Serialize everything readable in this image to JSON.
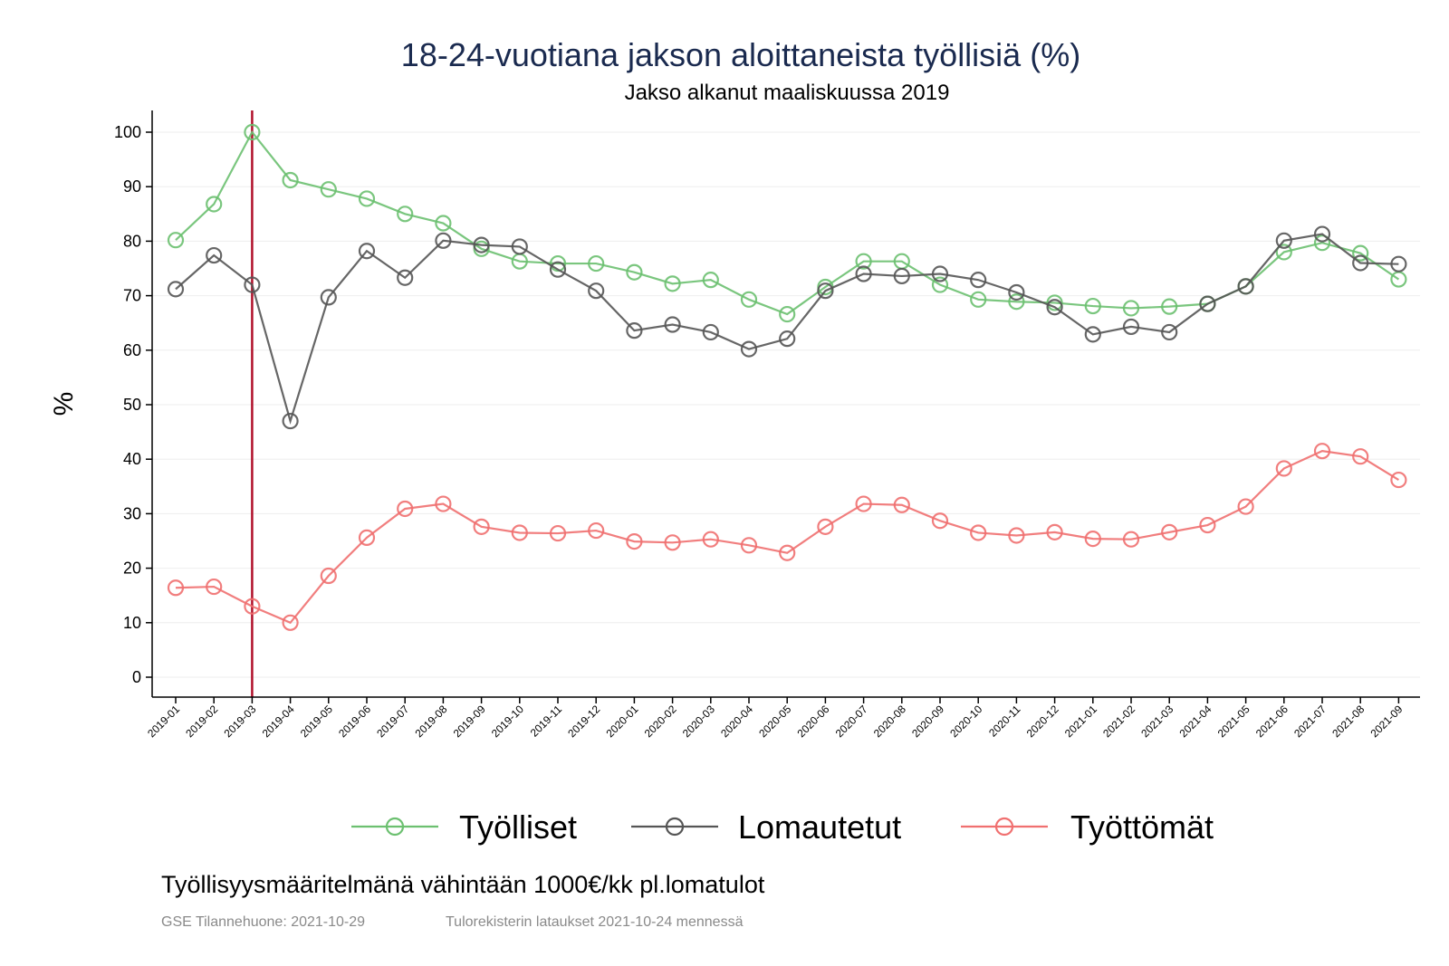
{
  "chart_data": {
    "type": "line",
    "title": "18-24-vuotiana jakson aloittaneista työllisiä (%)",
    "subtitle": "Jakso alkanut maaliskuussa 2019",
    "ylabel": "%",
    "xlabel": "",
    "ylim": [
      0,
      100
    ],
    "yticks": [
      0,
      10,
      20,
      30,
      40,
      50,
      60,
      70,
      80,
      90,
      100
    ],
    "grid": true,
    "legend_position": "bottom",
    "marker": "hollow-circle",
    "reference_line": {
      "x": "2019-03",
      "color": "#b0102a"
    },
    "categories": [
      "2019-01",
      "2019-02",
      "2019-03",
      "2019-04",
      "2019-05",
      "2019-06",
      "2019-07",
      "2019-08",
      "2019-09",
      "2019-10",
      "2019-11",
      "2019-12",
      "2020-01",
      "2020-02",
      "2020-03",
      "2020-04",
      "2020-05",
      "2020-06",
      "2020-07",
      "2020-08",
      "2020-09",
      "2020-10",
      "2020-11",
      "2020-12",
      "2021-01",
      "2021-02",
      "2021-03",
      "2021-04",
      "2021-05",
      "2021-06",
      "2021-07",
      "2021-08",
      "2021-09"
    ],
    "series": [
      {
        "name": "Työlliset",
        "color": "#6cc070",
        "values": [
          80.2,
          86.8,
          100,
          91.2,
          89.5,
          87.8,
          85.0,
          83.3,
          78.6,
          76.3,
          75.9,
          75.9,
          74.3,
          72.2,
          72.9,
          69.3,
          66.6,
          71.6,
          76.3,
          76.3,
          72.0,
          69.3,
          68.9,
          68.7,
          68.1,
          67.7,
          68.0,
          68.5,
          71.7,
          78.0,
          79.7,
          77.8,
          73.0
        ]
      },
      {
        "name": "Lomautetut",
        "color": "#555555",
        "values": [
          71.2,
          77.4,
          72.0,
          47.0,
          69.7,
          78.2,
          73.3,
          80.1,
          79.3,
          79.0,
          74.8,
          70.9,
          63.6,
          64.7,
          63.3,
          60.2,
          62.1,
          70.9,
          74.0,
          73.6,
          74.0,
          72.9,
          70.6,
          67.9,
          62.9,
          64.3,
          63.3,
          68.5,
          71.7,
          80.1,
          81.3,
          76.0,
          75.8
        ]
      },
      {
        "name": "Työttömät",
        "color": "#f07070",
        "values": [
          16.4,
          16.6,
          13.0,
          10.0,
          18.6,
          25.6,
          30.9,
          31.8,
          27.6,
          26.5,
          26.4,
          26.9,
          24.9,
          24.7,
          25.3,
          24.2,
          22.8,
          27.6,
          31.8,
          31.6,
          28.7,
          26.5,
          26.0,
          26.6,
          25.4,
          25.3,
          26.6,
          27.9,
          31.3,
          38.3,
          41.5,
          40.5,
          36.2
        ]
      }
    ],
    "note": "Työllisyysmääritelmänä vähintään 1000€/kk pl.lomatulot",
    "source_left": "GSE Tilannehuone: 2021-10-29",
    "source_right": "Tulorekisterin lataukset 2021-10-24 mennessä"
  }
}
